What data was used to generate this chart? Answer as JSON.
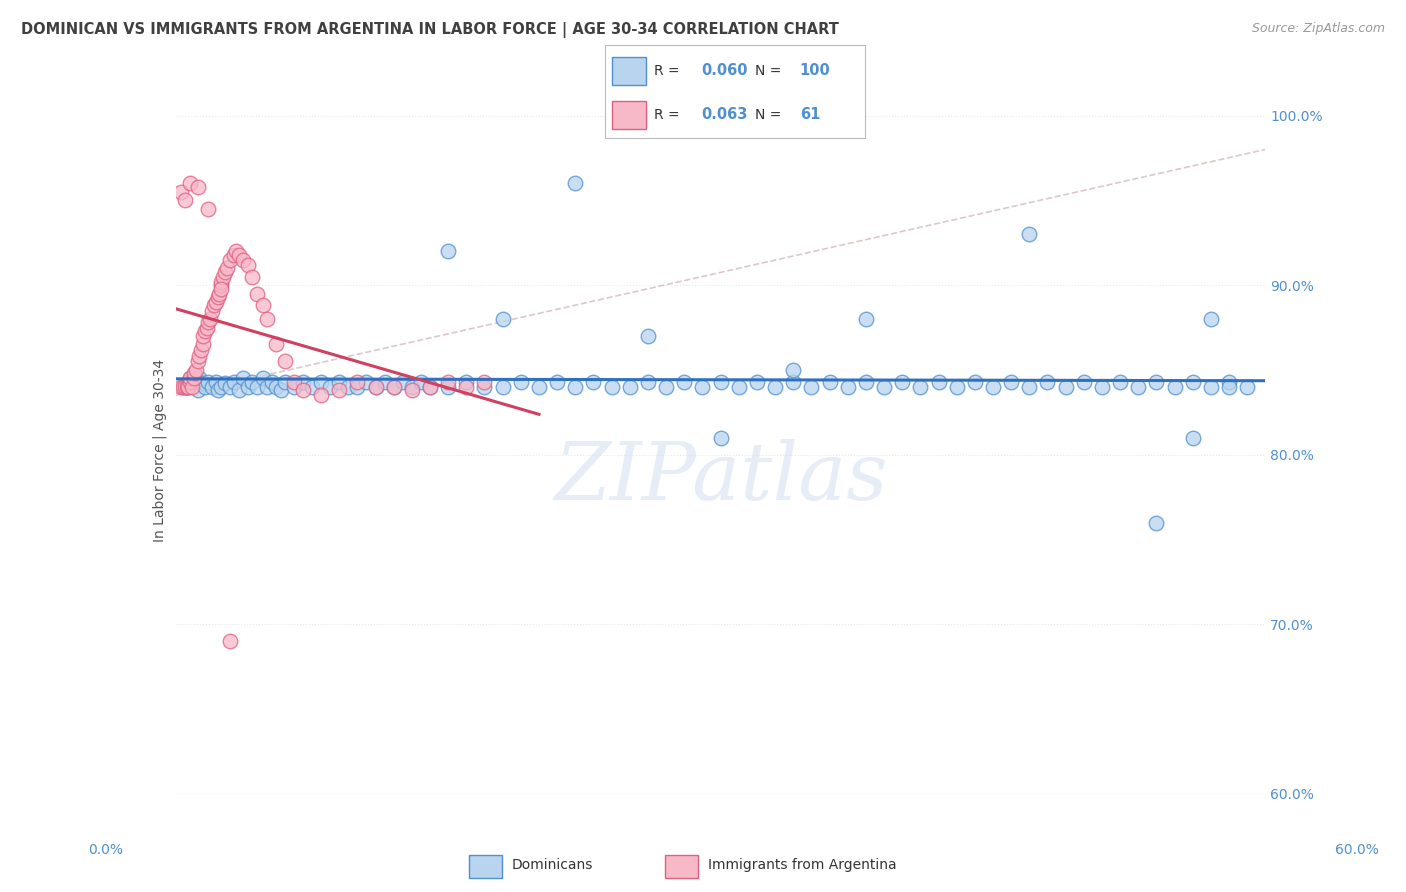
{
  "title": "DOMINICAN VS IMMIGRANTS FROM ARGENTINA IN LABOR FORCE | AGE 30-34 CORRELATION CHART",
  "source": "Source: ZipAtlas.com",
  "ylabel_label": "In Labor Force | Age 30-34",
  "legend_label1": "Dominicans",
  "legend_label2": "Immigrants from Argentina",
  "r1": "0.060",
  "n1": "100",
  "r2": "0.063",
  "n2": "61",
  "blue_fill": "#b8d4ee",
  "pink_fill": "#f7b8c8",
  "blue_edge": "#5090d0",
  "pink_edge": "#e06080",
  "blue_line": "#3070c0",
  "pink_line": "#d04060",
  "dash_line": "#d0b0b0",
  "title_color": "#404040",
  "axis_color": "#5090d0",
  "bg_color": "#ffffff",
  "grid_color": "#e8e8e8",
  "x_min": 0.0,
  "x_max": 0.6,
  "y_min": 0.6,
  "y_max": 1.005,
  "blue_x": [
    0.005,
    0.007,
    0.008,
    0.01,
    0.012,
    0.013,
    0.015,
    0.016,
    0.018,
    0.02,
    0.022,
    0.023,
    0.025,
    0.027,
    0.03,
    0.032,
    0.035,
    0.037,
    0.04,
    0.042,
    0.045,
    0.048,
    0.05,
    0.053,
    0.055,
    0.058,
    0.06,
    0.065,
    0.07,
    0.075,
    0.08,
    0.085,
    0.09,
    0.095,
    0.1,
    0.105,
    0.11,
    0.115,
    0.12,
    0.125,
    0.13,
    0.135,
    0.14,
    0.15,
    0.16,
    0.17,
    0.18,
    0.19,
    0.2,
    0.21,
    0.22,
    0.23,
    0.24,
    0.25,
    0.26,
    0.27,
    0.28,
    0.29,
    0.3,
    0.31,
    0.32,
    0.33,
    0.34,
    0.35,
    0.36,
    0.37,
    0.38,
    0.39,
    0.4,
    0.41,
    0.42,
    0.43,
    0.44,
    0.45,
    0.46,
    0.47,
    0.48,
    0.49,
    0.5,
    0.51,
    0.52,
    0.53,
    0.54,
    0.55,
    0.56,
    0.57,
    0.58,
    0.59,
    0.15,
    0.18,
    0.22,
    0.26,
    0.3,
    0.34,
    0.38,
    0.47,
    0.54,
    0.56,
    0.57,
    0.58
  ],
  "blue_y": [
    0.84,
    0.84,
    0.845,
    0.842,
    0.838,
    0.845,
    0.842,
    0.84,
    0.843,
    0.84,
    0.843,
    0.838,
    0.84,
    0.842,
    0.84,
    0.843,
    0.838,
    0.845,
    0.84,
    0.843,
    0.84,
    0.845,
    0.84,
    0.843,
    0.84,
    0.838,
    0.843,
    0.84,
    0.843,
    0.84,
    0.843,
    0.84,
    0.843,
    0.84,
    0.84,
    0.843,
    0.84,
    0.843,
    0.84,
    0.843,
    0.84,
    0.843,
    0.84,
    0.84,
    0.843,
    0.84,
    0.84,
    0.843,
    0.84,
    0.843,
    0.84,
    0.843,
    0.84,
    0.84,
    0.843,
    0.84,
    0.843,
    0.84,
    0.843,
    0.84,
    0.843,
    0.84,
    0.843,
    0.84,
    0.843,
    0.84,
    0.843,
    0.84,
    0.843,
    0.84,
    0.843,
    0.84,
    0.843,
    0.84,
    0.843,
    0.84,
    0.843,
    0.84,
    0.843,
    0.84,
    0.843,
    0.84,
    0.843,
    0.84,
    0.843,
    0.84,
    0.843,
    0.84,
    0.92,
    0.88,
    0.96,
    0.87,
    0.81,
    0.85,
    0.88,
    0.93,
    0.76,
    0.81,
    0.88,
    0.84
  ],
  "pink_x": [
    0.003,
    0.004,
    0.005,
    0.006,
    0.007,
    0.008,
    0.008,
    0.009,
    0.01,
    0.01,
    0.011,
    0.012,
    0.013,
    0.014,
    0.015,
    0.015,
    0.016,
    0.017,
    0.018,
    0.019,
    0.02,
    0.021,
    0.022,
    0.023,
    0.024,
    0.025,
    0.025,
    0.026,
    0.027,
    0.028,
    0.03,
    0.032,
    0.033,
    0.035,
    0.037,
    0.04,
    0.042,
    0.045,
    0.048,
    0.05,
    0.055,
    0.06,
    0.065,
    0.07,
    0.08,
    0.09,
    0.1,
    0.11,
    0.12,
    0.13,
    0.14,
    0.15,
    0.16,
    0.17,
    0.003,
    0.005,
    0.008,
    0.012,
    0.018,
    0.025,
    0.03
  ],
  "pink_y": [
    0.84,
    0.84,
    0.84,
    0.84,
    0.84,
    0.843,
    0.845,
    0.84,
    0.845,
    0.848,
    0.85,
    0.855,
    0.858,
    0.862,
    0.865,
    0.87,
    0.873,
    0.875,
    0.878,
    0.88,
    0.885,
    0.888,
    0.89,
    0.893,
    0.895,
    0.9,
    0.902,
    0.905,
    0.908,
    0.91,
    0.915,
    0.918,
    0.92,
    0.918,
    0.915,
    0.912,
    0.905,
    0.895,
    0.888,
    0.88,
    0.865,
    0.855,
    0.843,
    0.838,
    0.835,
    0.838,
    0.843,
    0.84,
    0.84,
    0.838,
    0.84,
    0.843,
    0.84,
    0.843,
    0.955,
    0.95,
    0.96,
    0.958,
    0.945,
    0.898,
    0.69
  ]
}
